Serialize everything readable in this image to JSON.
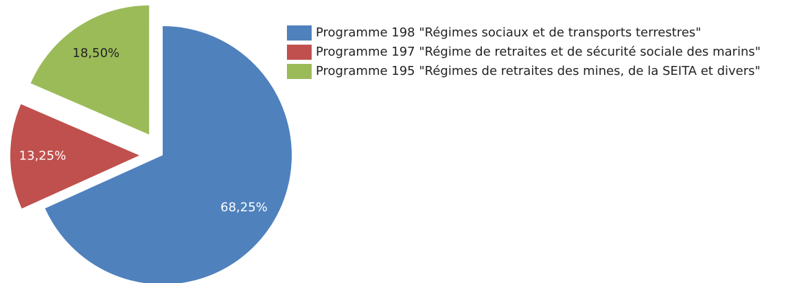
{
  "chart_data": {
    "type": "pie",
    "categories": [
      "Programme 198 \"Régimes sociaux et de transports terrestres\"",
      "Programme 197 \"Régime de retraites et de sécurité sociale des marins\"",
      "Programme 195 \"Régimes de retraites des mines, de la SEITA et divers\""
    ],
    "values": [
      68.25,
      13.25,
      18.5
    ],
    "value_labels": [
      "68,25%",
      "13,25%",
      "18,50%"
    ],
    "colors": [
      "#4f81bd",
      "#c0504d",
      "#9bbb59"
    ],
    "legend": "right"
  }
}
